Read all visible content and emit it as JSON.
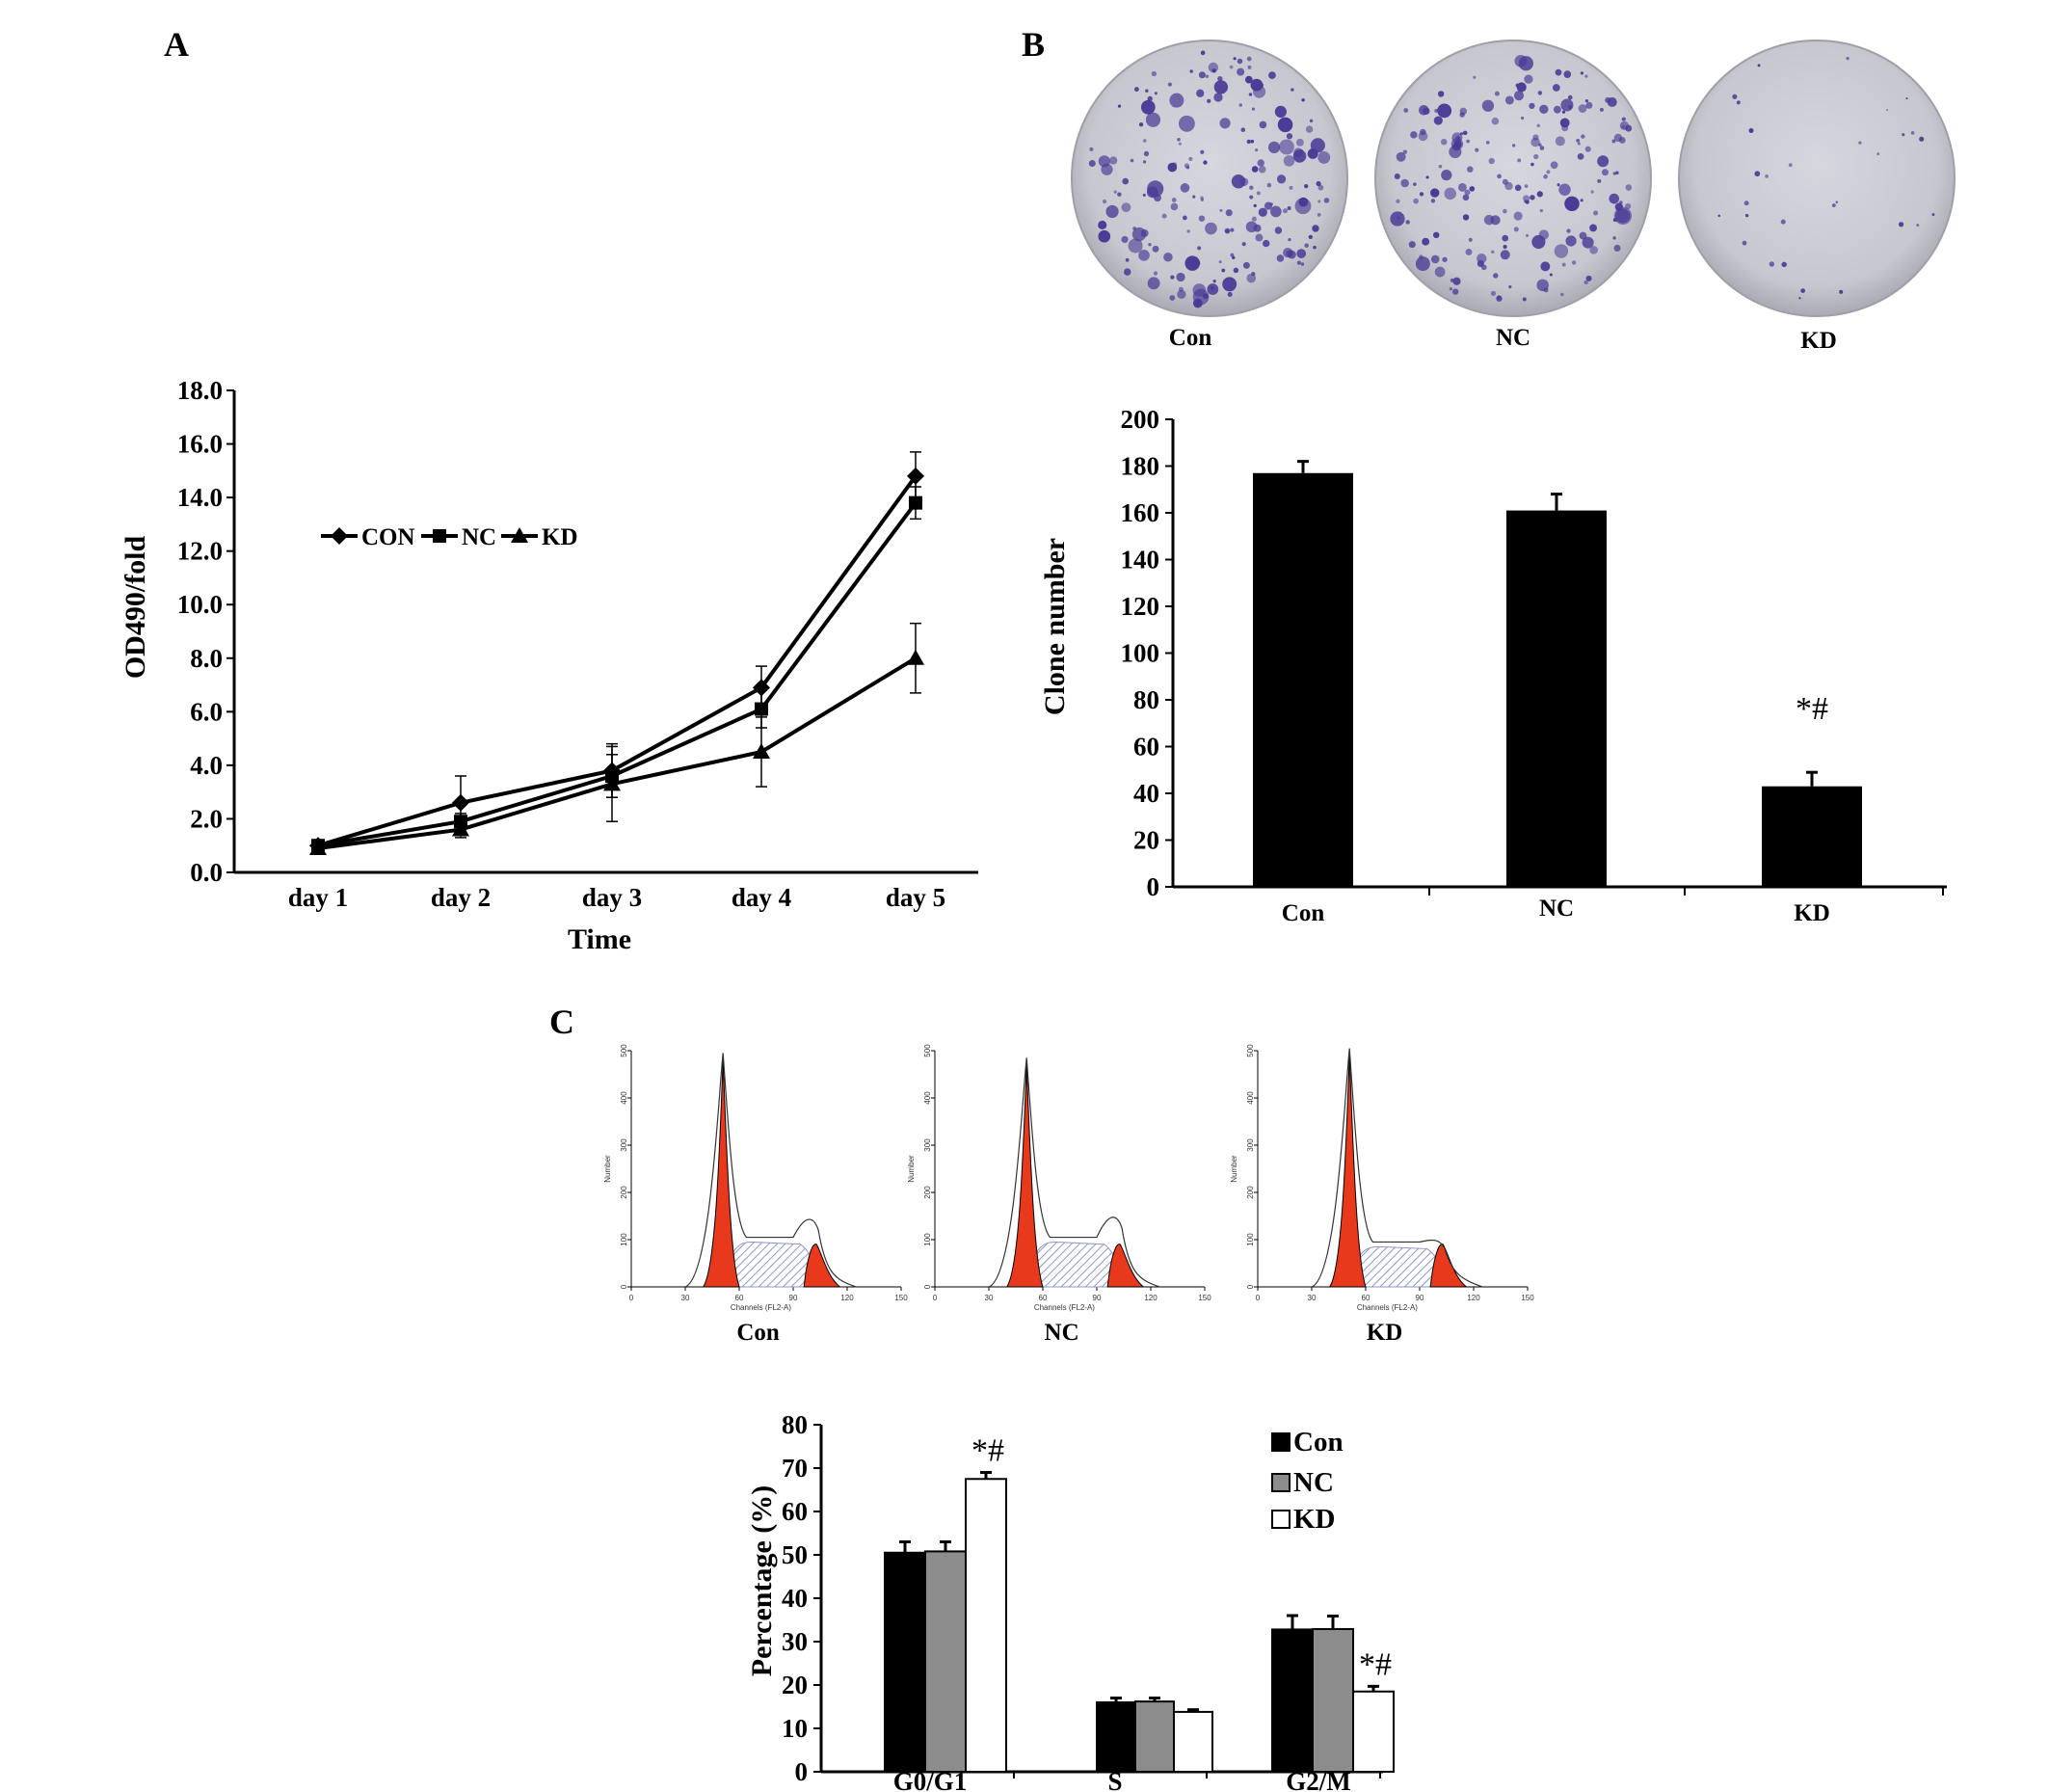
{
  "panels": {
    "A": "A",
    "B": "B",
    "C": "C"
  },
  "chart_data": [
    {
      "id": "A",
      "type": "line",
      "x": [
        "day 1",
        "day 2",
        "day 3",
        "day 4",
        "day 5"
      ],
      "series": [
        {
          "name": "CON",
          "marker": "diamond",
          "values": [
            1.0,
            2.6,
            3.8,
            6.9,
            14.8
          ],
          "errors": [
            0.1,
            1.0,
            1.0,
            0.8,
            0.9
          ]
        },
        {
          "name": "NC",
          "marker": "square",
          "values": [
            1.0,
            1.9,
            3.6,
            6.1,
            13.8
          ],
          "errors": [
            0.1,
            0.3,
            0.8,
            0.7,
            0.6
          ]
        },
        {
          "name": "KD",
          "marker": "triangle",
          "values": [
            0.9,
            1.6,
            3.3,
            4.5,
            8.0
          ],
          "errors": [
            0.1,
            0.3,
            1.4,
            1.3,
            1.3
          ]
        }
      ],
      "ylabel": "OD490/fold",
      "xlabel": "Time",
      "ylim": [
        0,
        18
      ],
      "yticks": [
        "0.0",
        "2.0",
        "4.0",
        "6.0",
        "8.0",
        "10.0",
        "12.0",
        "14.0",
        "16.0",
        "18.0"
      ],
      "legend_position": "top-left"
    },
    {
      "id": "B",
      "type": "bar",
      "categories": [
        "Con",
        "NC",
        "KD"
      ],
      "values": [
        177,
        161,
        43
      ],
      "errors": [
        5,
        7,
        6
      ],
      "ylabel": "Clone number",
      "ylim": [
        0,
        200
      ],
      "yticks": [
        "0",
        "20",
        "40",
        "60",
        "80",
        "100",
        "120",
        "140",
        "160",
        "180",
        "200"
      ],
      "annotations": [
        {
          "category": "KD",
          "text": "*#"
        }
      ]
    },
    {
      "id": "C",
      "type": "bar",
      "categories": [
        "G0/G1",
        "S",
        "G2/M"
      ],
      "series": [
        {
          "name": "Con",
          "color": "#000000",
          "values": [
            50.5,
            16.0,
            32.8
          ],
          "errors": [
            2.5,
            1.0,
            3.2
          ]
        },
        {
          "name": "NC",
          "color": "#8c8c8c",
          "values": [
            50.8,
            16.2,
            32.9
          ],
          "errors": [
            2.2,
            0.8,
            3.0
          ]
        },
        {
          "name": "KD",
          "color": "#ffffff",
          "values": [
            67.5,
            13.8,
            18.5
          ],
          "errors": [
            1.5,
            0.5,
            1.2
          ]
        }
      ],
      "ylabel": "Percentage (%)",
      "ylim": [
        0,
        80
      ],
      "yticks": [
        "0",
        "10",
        "20",
        "30",
        "40",
        "50",
        "60",
        "70",
        "80"
      ],
      "annotations": [
        {
          "category": "G0/G1",
          "series": "KD",
          "text": "*#"
        },
        {
          "category": "G2/M",
          "series": "KD",
          "text": "*#"
        }
      ],
      "legend_position": "top-right"
    }
  ],
  "plates": [
    {
      "label": "Con",
      "colony_density": "high"
    },
    {
      "label": "NC",
      "colony_density": "high"
    },
    {
      "label": "KD",
      "colony_density": "low"
    }
  ],
  "histograms": {
    "ylabel": "Number",
    "xlabel": "Channels (FL2-A)",
    "yticks": [
      "0",
      "100",
      "200",
      "300",
      "400",
      "500"
    ],
    "xticks": [
      "0",
      "30",
      "60",
      "90",
      "120",
      "150"
    ],
    "panels": [
      {
        "label": "Con",
        "g1_peak": 480,
        "s_level": 95,
        "g2_peak": 150
      },
      {
        "label": "NC",
        "g1_peak": 470,
        "s_level": 95,
        "g2_peak": 155
      },
      {
        "label": "KD",
        "g1_peak": 490,
        "s_level": 85,
        "g2_peak": 100
      }
    ]
  },
  "colors": {
    "line": "#000000",
    "histogram_fill": "#e8391d",
    "s_phase_hatch": "#8e94c8",
    "plate_bg": "#c9cad2",
    "colony": "#4a3a96"
  }
}
